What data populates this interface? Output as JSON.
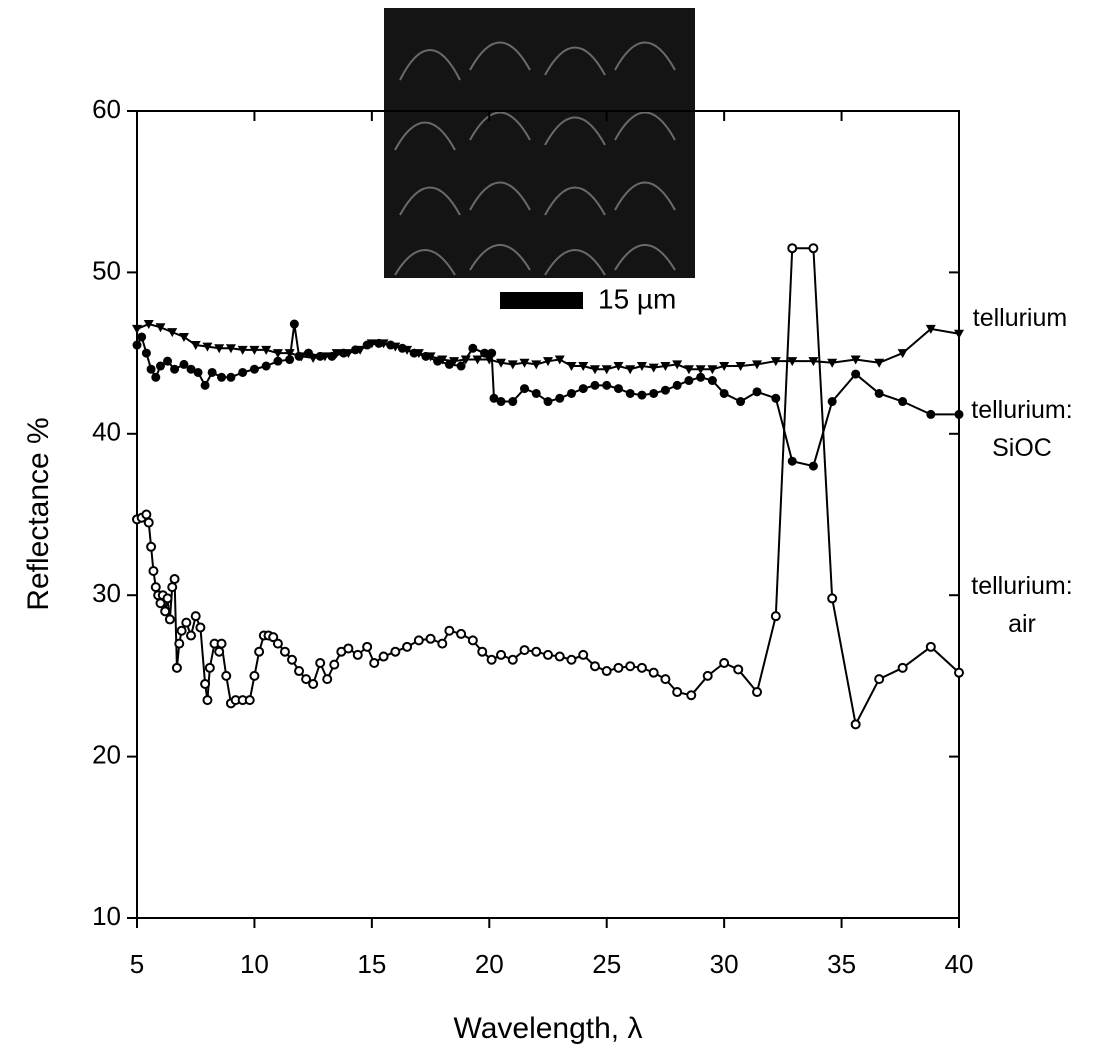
{
  "chart_data": {
    "type": "line",
    "x_label": "Wavelength, λ",
    "y_label": "Reflectance %",
    "inset_label": "15 µm",
    "xlim": [
      5,
      40
    ],
    "xticks": [
      5,
      10,
      15,
      20,
      25,
      30,
      35,
      40
    ],
    "ylim": [
      10,
      60
    ],
    "yticks": [
      10,
      20,
      30,
      40,
      50,
      60
    ],
    "grid": false,
    "series": [
      {
        "name": "tellurium",
        "color": "#000000",
        "marker": "triangle-down",
        "x": [
          5.0,
          5.5,
          6.0,
          6.5,
          7.0,
          7.5,
          8.0,
          8.5,
          9.0,
          9.5,
          10.0,
          10.5,
          11.0,
          11.5,
          12.0,
          12.5,
          13.0,
          13.5,
          14.0,
          14.5,
          15.0,
          15.5,
          16.0,
          16.5,
          17.0,
          17.5,
          18.0,
          18.5,
          19.0,
          19.5,
          20.0,
          20.5,
          21.0,
          21.5,
          22.0,
          22.5,
          23.0,
          23.5,
          24.0,
          24.5,
          25.0,
          25.5,
          26.0,
          26.5,
          27.0,
          27.5,
          28.0,
          28.5,
          29.0,
          29.5,
          30.0,
          30.7,
          31.4,
          32.2,
          32.9,
          33.8,
          34.6,
          35.6,
          36.6,
          37.6,
          38.8,
          40.0
        ],
        "values": [
          46.5,
          46.8,
          46.6,
          46.3,
          46.0,
          45.5,
          45.4,
          45.3,
          45.3,
          45.2,
          45.2,
          45.2,
          45.0,
          45.0,
          44.8,
          44.7,
          44.8,
          45.0,
          45.0,
          45.2,
          45.6,
          45.6,
          45.4,
          45.2,
          45.0,
          44.8,
          44.6,
          44.5,
          44.6,
          44.6,
          44.6,
          44.4,
          44.3,
          44.4,
          44.3,
          44.5,
          44.6,
          44.2,
          44.2,
          44.0,
          44.0,
          44.2,
          44.0,
          44.2,
          44.1,
          44.2,
          44.3,
          44.0,
          44.0,
          44.0,
          44.2,
          44.2,
          44.3,
          44.5,
          44.5,
          44.5,
          44.4,
          44.6,
          44.4,
          45.0,
          46.5,
          46.2
        ]
      },
      {
        "name": "tellurium: SiOC",
        "color": "#000000",
        "marker": "circle",
        "x": [
          5.0,
          5.2,
          5.4,
          5.6,
          5.8,
          6.0,
          6.3,
          6.6,
          7.0,
          7.3,
          7.6,
          7.9,
          8.2,
          8.6,
          9.0,
          9.5,
          10.0,
          10.5,
          11.0,
          11.5,
          11.7,
          11.9,
          12.3,
          12.8,
          13.3,
          13.8,
          14.3,
          14.8,
          15.3,
          15.8,
          16.3,
          16.8,
          17.3,
          17.8,
          18.3,
          18.8,
          19.3,
          19.8,
          20.1,
          20.2,
          20.5,
          21.0,
          21.5,
          22.0,
          22.5,
          23.0,
          23.5,
          24.0,
          24.5,
          25.0,
          25.5,
          26.0,
          26.5,
          27.0,
          27.5,
          28.0,
          28.5,
          29.0,
          29.5,
          30.0,
          30.7,
          31.4,
          32.2,
          32.9,
          33.8,
          34.6,
          35.6,
          36.6,
          37.6,
          38.8,
          40.0
        ],
        "values": [
          45.5,
          46.0,
          45.0,
          44.0,
          43.5,
          44.2,
          44.5,
          44.0,
          44.3,
          44.0,
          43.8,
          43.0,
          43.8,
          43.5,
          43.5,
          43.8,
          44.0,
          44.2,
          44.5,
          44.6,
          46.8,
          44.8,
          45.0,
          44.8,
          44.8,
          45.0,
          45.2,
          45.5,
          45.6,
          45.5,
          45.3,
          45.0,
          44.8,
          44.5,
          44.3,
          44.2,
          45.3,
          45.0,
          45.0,
          42.2,
          42.0,
          42.0,
          42.8,
          42.5,
          42.0,
          42.2,
          42.5,
          42.8,
          43.0,
          43.0,
          42.8,
          42.5,
          42.4,
          42.5,
          42.7,
          43.0,
          43.3,
          43.5,
          43.3,
          42.5,
          42.0,
          42.6,
          42.2,
          38.3,
          38.0,
          42.0,
          43.7,
          42.5,
          42.0,
          41.2,
          41.2
        ]
      },
      {
        "name": "tellurium: air",
        "color": "#000000",
        "marker": "open-circle",
        "x": [
          5.0,
          5.2,
          5.4,
          5.5,
          5.6,
          5.7,
          5.8,
          5.9,
          6.0,
          6.1,
          6.2,
          6.3,
          6.4,
          6.5,
          6.6,
          6.7,
          6.8,
          6.9,
          7.1,
          7.3,
          7.5,
          7.7,
          7.9,
          8.0,
          8.1,
          8.3,
          8.5,
          8.6,
          8.8,
          9.0,
          9.2,
          9.5,
          9.8,
          10.0,
          10.2,
          10.4,
          10.6,
          10.8,
          11.0,
          11.3,
          11.6,
          11.9,
          12.2,
          12.5,
          12.8,
          13.1,
          13.4,
          13.7,
          14.0,
          14.4,
          14.8,
          15.1,
          15.5,
          16.0,
          16.5,
          17.0,
          17.5,
          18.0,
          18.3,
          18.8,
          19.3,
          19.7,
          20.1,
          20.5,
          21.0,
          21.5,
          22.0,
          22.5,
          23.0,
          23.5,
          24.0,
          24.5,
          25.0,
          25.5,
          26.0,
          26.5,
          27.0,
          27.5,
          28.0,
          28.6,
          29.3,
          30.0,
          30.6,
          31.4,
          32.2,
          32.9,
          33.8,
          34.6,
          35.6,
          36.6,
          37.6,
          38.8,
          40.0
        ],
        "values": [
          34.7,
          34.8,
          35.0,
          34.5,
          33.0,
          31.5,
          30.5,
          30.0,
          29.5,
          30.0,
          29.0,
          29.8,
          28.5,
          30.5,
          31.0,
          25.5,
          27.0,
          27.8,
          28.3,
          27.5,
          28.7,
          28.0,
          24.5,
          23.5,
          25.5,
          27.0,
          26.5,
          27.0,
          25.0,
          23.3,
          23.5,
          23.5,
          23.5,
          25.0,
          26.5,
          27.5,
          27.5,
          27.4,
          27.0,
          26.5,
          26.0,
          25.3,
          24.8,
          24.5,
          25.8,
          24.8,
          25.7,
          26.5,
          26.7,
          26.3,
          26.8,
          25.8,
          26.2,
          26.5,
          26.8,
          27.2,
          27.3,
          27.0,
          27.8,
          27.6,
          27.2,
          26.5,
          26.0,
          26.3,
          26.0,
          26.6,
          26.5,
          26.3,
          26.2,
          26.0,
          26.3,
          25.6,
          25.3,
          25.5,
          25.6,
          25.5,
          25.2,
          24.8,
          24.0,
          23.8,
          25.0,
          25.8,
          25.4,
          24.0,
          28.7,
          51.5,
          51.5,
          29.8,
          22.0,
          24.8,
          25.5,
          26.8,
          25.2
        ]
      }
    ]
  }
}
